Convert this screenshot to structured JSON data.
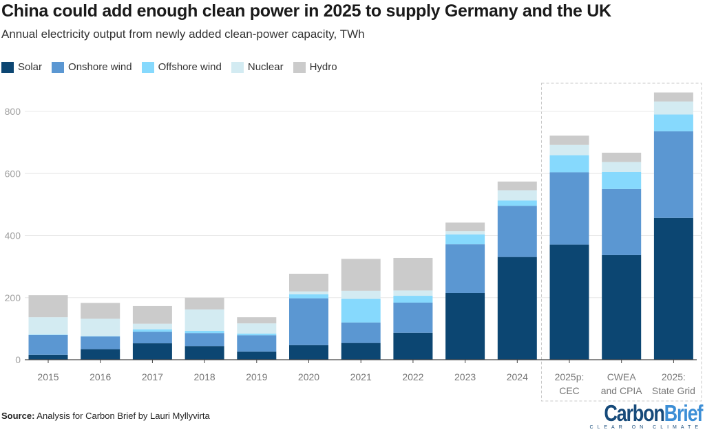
{
  "title": "China could add enough clean power in 2025 to supply Germany and the UK",
  "subtitle": "Annual electricity output from newly added clean-power capacity, TWh",
  "source_label": "Source:",
  "source_text": " Analysis for Carbon Brief by Lauri Myllyvirta",
  "logo": {
    "part1": "Carbon",
    "part2": "Brief",
    "tagline": "CLEAR ON CLIMATE"
  },
  "chart_data": {
    "type": "bar",
    "stacked": true,
    "title": "China could add enough clean power in 2025 to supply Germany and the UK",
    "subtitle": "Annual electricity output from newly added clean-power capacity, TWh",
    "ylim": [
      0,
      900
    ],
    "yticks": [
      0,
      200,
      400,
      600,
      800
    ],
    "grid": true,
    "legend_position": "top-left",
    "categories": [
      "2015",
      "2016",
      "2017",
      "2018",
      "2019",
      "2020",
      "2021",
      "2022",
      "2023",
      "2024",
      "2025p: CEC",
      "CWEA and CPIA",
      "2025: State Grid"
    ],
    "category_lines": [
      [
        "2015"
      ],
      [
        "2016"
      ],
      [
        "2017"
      ],
      [
        "2018"
      ],
      [
        "2019"
      ],
      [
        "2020"
      ],
      [
        "2021"
      ],
      [
        "2022"
      ],
      [
        "2023"
      ],
      [
        "2024"
      ],
      [
        "2025p:",
        "CEC"
      ],
      [
        "CWEA",
        "and CPIA"
      ],
      [
        "2025:",
        "State Grid"
      ]
    ],
    "highlighted_group": [
      "2025p: CEC",
      "CWEA and CPIA",
      "2025: State Grid"
    ],
    "series": [
      {
        "name": "Solar",
        "color": "#0c4672",
        "values": [
          16,
          34,
          53,
          44,
          26,
          47,
          54,
          87,
          215,
          331,
          371,
          337,
          457
        ]
      },
      {
        "name": "Onshore wind",
        "color": "#5b97d2",
        "values": [
          64,
          41,
          37,
          42,
          53,
          151,
          66,
          97,
          157,
          165,
          233,
          213,
          279
        ]
      },
      {
        "name": "Offshore wind",
        "color": "#86d9fd",
        "values": [
          1,
          1,
          8,
          7,
          5,
          13,
          76,
          22,
          32,
          17,
          55,
          55,
          54
        ]
      },
      {
        "name": "Nuclear",
        "color": "#d3ebf2",
        "values": [
          56,
          56,
          18,
          69,
          33,
          9,
          26,
          17,
          10,
          33,
          33,
          32,
          42
        ]
      },
      {
        "name": "Hydro",
        "color": "#cbcbcb",
        "values": [
          71,
          51,
          57,
          38,
          20,
          57,
          103,
          105,
          28,
          28,
          30,
          30,
          29
        ]
      }
    ]
  }
}
